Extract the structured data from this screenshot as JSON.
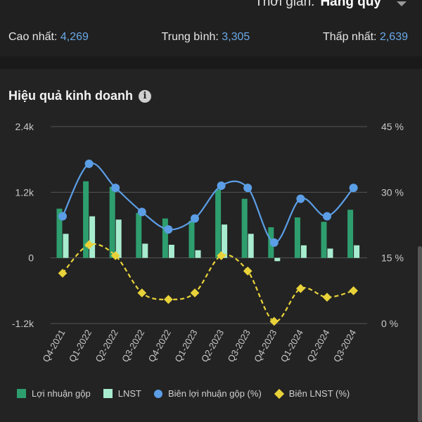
{
  "header": {
    "period_label": "Thời gian:",
    "period_value": "Hàng quý"
  },
  "stats": {
    "high_label": "Cao nhất:",
    "high_value": "4,269",
    "avg_label": "Trung bình:",
    "avg_value": "3,305",
    "low_label": "Thấp nhất:",
    "low_value": "2,639"
  },
  "section": {
    "title": "Hiệu quả kinh doanh",
    "info_icon": "info-icon"
  },
  "colors": {
    "gross_profit": "#2e9e6f",
    "net_profit": "#a8ecd0",
    "gross_margin": "#5b9ee6",
    "net_margin": "#e8d23a",
    "grid": "#555555",
    "axis_text": "#c8c8c8"
  },
  "chart_data": {
    "type": "bar",
    "categories": [
      "Q4-2021",
      "Q1-2022",
      "Q2-2022",
      "Q3-2022",
      "Q4-2022",
      "Q1-2023",
      "Q2-2023",
      "Q3-2023",
      "Q4-2023",
      "Q1-2024",
      "Q2-2024",
      "Q3-2024"
    ],
    "y_left": {
      "ticks": [
        2400,
        1200,
        0,
        -1200
      ],
      "tick_labels": [
        "2.4k",
        "1.2k",
        "0",
        "-1.2k"
      ],
      "range": [
        -1200,
        2400
      ]
    },
    "y_right": {
      "ticks": [
        45,
        30,
        15,
        0
      ],
      "tick_labels": [
        "45 %",
        "30 %",
        "15 %",
        "0 %"
      ],
      "range": [
        0,
        45
      ]
    },
    "grid": true,
    "legend_position": "bottom",
    "series": [
      {
        "name": "Lợi nhuận gộp",
        "type": "bar",
        "axis": "left",
        "values": [
          900,
          1400,
          1300,
          820,
          720,
          680,
          1250,
          1080,
          560,
          740,
          660,
          880
        ]
      },
      {
        "name": "LNST",
        "type": "bar",
        "axis": "left",
        "values": [
          440,
          760,
          700,
          260,
          240,
          140,
          610,
          440,
          -60,
          230,
          170,
          230
        ]
      },
      {
        "name": "Biên lợi nhuận gộp (%)",
        "type": "line",
        "axis": "right",
        "marker": "circle",
        "values": [
          24.5,
          36.5,
          31,
          25.5,
          21.5,
          24,
          31.5,
          31,
          18.5,
          28.5,
          24.5,
          31
        ]
      },
      {
        "name": "Biên LNST (%)",
        "type": "line",
        "axis": "right",
        "marker": "diamond",
        "dashed": true,
        "values": [
          11.5,
          18,
          15.5,
          7,
          5.5,
          7,
          15.5,
          12,
          0.5,
          8,
          6,
          7.5
        ]
      }
    ]
  }
}
